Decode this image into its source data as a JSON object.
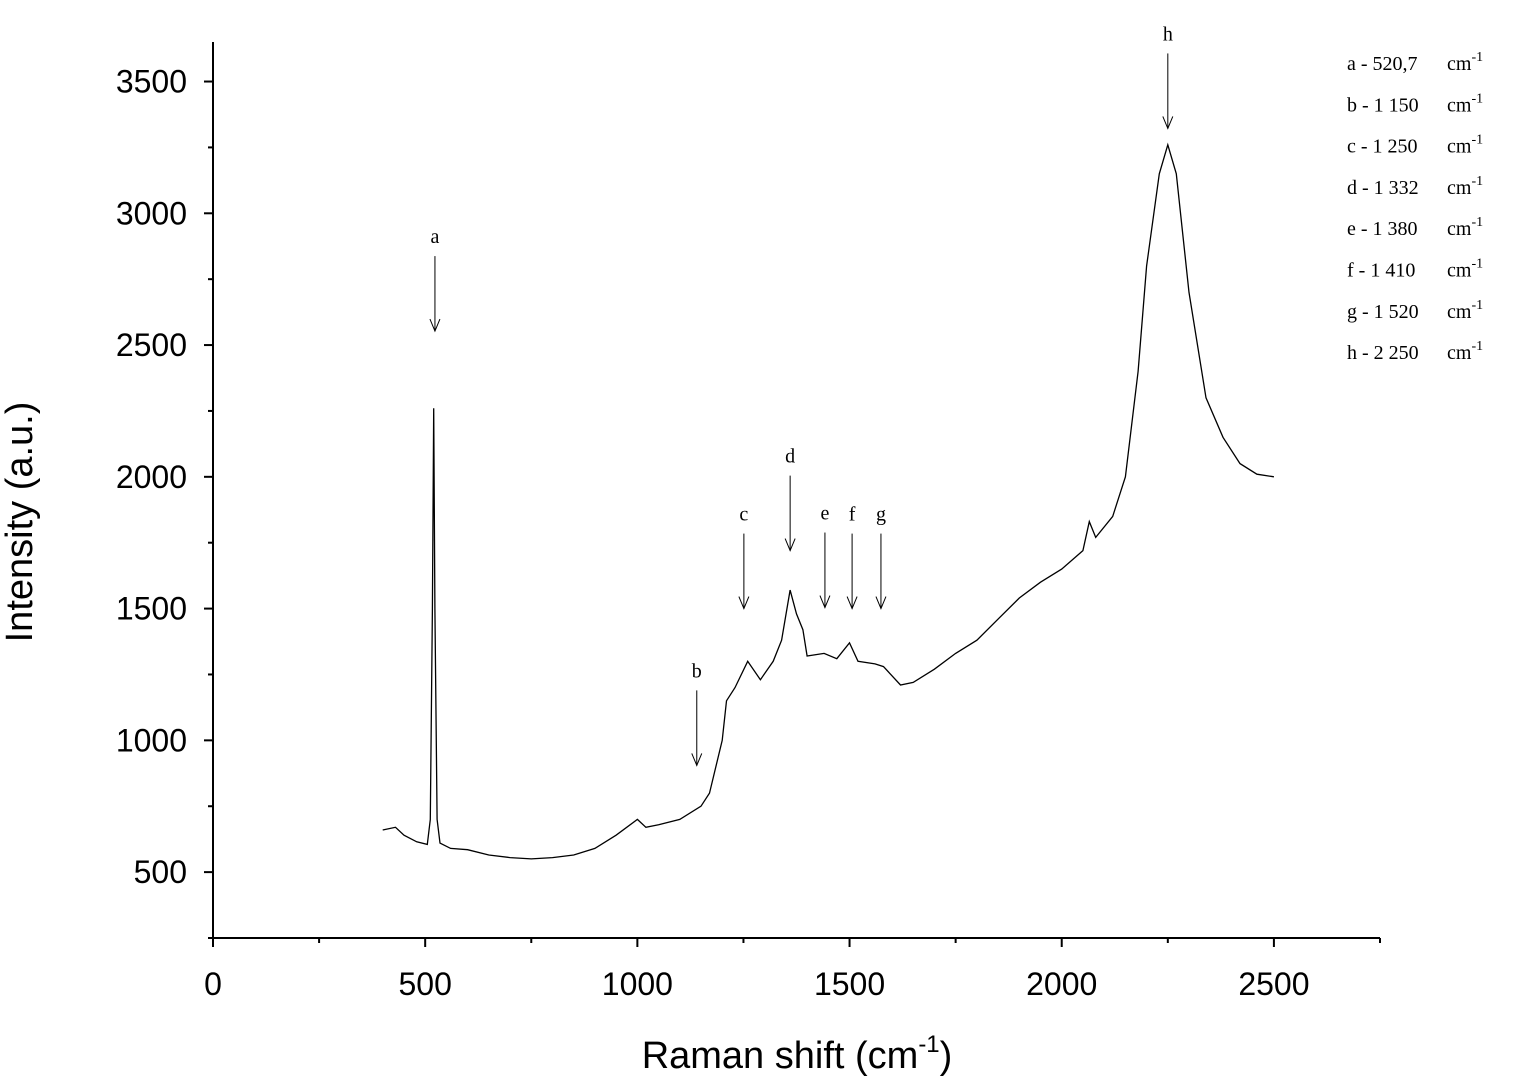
{
  "chart_data": {
    "type": "line",
    "xlabel": "Raman shift (cm",
    "xlabel_sup": "-1",
    "xlabel_end": ")",
    "ylabel": "Intensity (a.u.)",
    "color": "#000000",
    "x": [
      400,
      430,
      450,
      480,
      505,
      512,
      517,
      520,
      523,
      528,
      535,
      560,
      600,
      650,
      700,
      750,
      800,
      850,
      900,
      950,
      1000,
      1020,
      1050,
      1100,
      1150,
      1170,
      1200,
      1210,
      1230,
      1260,
      1290,
      1320,
      1340,
      1360,
      1375,
      1390,
      1400,
      1440,
      1470,
      1500,
      1520,
      1560,
      1580,
      1620,
      1650,
      1700,
      1750,
      1800,
      1850,
      1900,
      1950,
      2000,
      2050,
      2065,
      2080,
      2120,
      2150,
      2180,
      2200,
      2230,
      2250,
      2270,
      2300,
      2340,
      2380,
      2420,
      2460,
      2500
    ],
    "values": [
      660,
      670,
      640,
      615,
      605,
      700,
      1500,
      2260,
      1500,
      700,
      610,
      590,
      585,
      565,
      555,
      550,
      555,
      565,
      590,
      640,
      700,
      670,
      680,
      700,
      750,
      800,
      1000,
      1150,
      1200,
      1300,
      1230,
      1300,
      1380,
      1570,
      1480,
      1420,
      1320,
      1330,
      1310,
      1370,
      1300,
      1290,
      1280,
      1210,
      1220,
      1270,
      1330,
      1380,
      1460,
      1540,
      1600,
      1650,
      1720,
      1830,
      1770,
      1850,
      2000,
      2400,
      2800,
      3150,
      3260,
      3150,
      2700,
      2300,
      2150,
      2050,
      2010,
      2000
    ],
    "xlim": [
      0,
      2750
    ],
    "ylim": [
      250,
      3650
    ],
    "xticks": [
      0,
      500,
      1000,
      1500,
      2000,
      2500
    ],
    "yticks": [
      500,
      1000,
      1500,
      2000,
      2500,
      3000,
      3500
    ],
    "xminor": [
      250,
      750,
      1250,
      1750,
      2250,
      2750
    ],
    "yminor": [
      250,
      750,
      1250,
      1750,
      2250,
      2750,
      3250
    ],
    "annotations": [
      {
        "text": "a",
        "x": 523,
        "y": 2553
      },
      {
        "text": "b",
        "x": 1140,
        "y": 905
      },
      {
        "text": "c",
        "x": 1251,
        "y": 1500
      },
      {
        "text": "d",
        "x": 1360,
        "y": 1720
      },
      {
        "text": "e",
        "x": 1442,
        "y": 1504
      },
      {
        "text": "f",
        "x": 1506,
        "y": 1500
      },
      {
        "text": "g",
        "x": 1574,
        "y": 1500
      },
      {
        "text": "h",
        "x": 2250,
        "y": 3322
      }
    ],
    "legend": {
      "unit": "cm",
      "unit_sup": "-1",
      "items": [
        "a - 520,7",
        "b - 1 150",
        "c - 1 250",
        "d - 1 332",
        "e - 1 380",
        "f - 1 410",
        "g - 1 520",
        "h - 2 250"
      ]
    }
  }
}
